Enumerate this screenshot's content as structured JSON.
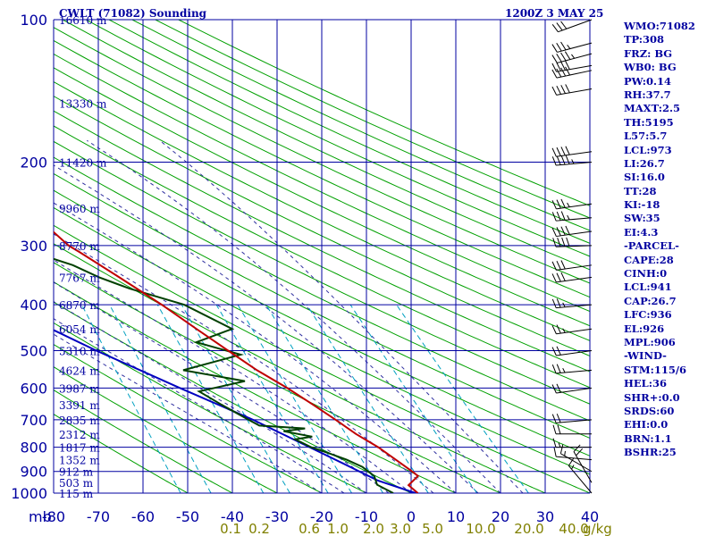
{
  "header": {
    "station": "CWLT (71082) Sounding",
    "valid": "1200Z  3 MAY 25"
  },
  "chart_data": {
    "type": "skew-t",
    "title": "CWLT (71082) Sounding",
    "pressure_ticks": [
      {
        "p": 100,
        "label": "100"
      },
      {
        "p": 200,
        "label": "200"
      },
      {
        "p": 300,
        "label": "300"
      },
      {
        "p": 400,
        "label": "400"
      },
      {
        "p": 500,
        "label": "500"
      },
      {
        "p": 600,
        "label": "600"
      },
      {
        "p": 700,
        "label": "700"
      },
      {
        "p": 800,
        "label": "800"
      },
      {
        "p": 900,
        "label": "900"
      },
      {
        "p": 1000,
        "label": "1000"
      }
    ],
    "pressure_unit_label": "mb",
    "temperature_ticks": [
      -80,
      -70,
      -60,
      -50,
      -40,
      -30,
      -20,
      -10,
      0,
      10,
      20,
      30,
      40
    ],
    "mixing_ratio_labels": [
      "0.1",
      "0.2",
      "0.6",
      "1.0",
      "2.0",
      "3.0",
      "5.0",
      "10.0",
      "20.0",
      "40.0"
    ],
    "mixing_ratio_unit": "g/kg",
    "heights": [
      {
        "p": 100,
        "label": "16610 m"
      },
      {
        "p": 150,
        "label": "13330 m"
      },
      {
        "p": 200,
        "label": "11420 m"
      },
      {
        "p": 250,
        "label": "9960 m"
      },
      {
        "p": 300,
        "label": "8770 m"
      },
      {
        "p": 350,
        "label": "7767 m"
      },
      {
        "p": 400,
        "label": "6870 m"
      },
      {
        "p": 450,
        "label": "6054 m"
      },
      {
        "p": 500,
        "label": "5310 m"
      },
      {
        "p": 550,
        "label": "4624 m"
      },
      {
        "p": 600,
        "label": "3987 m"
      },
      {
        "p": 650,
        "label": "3391 m"
      },
      {
        "p": 700,
        "label": "2835 m"
      },
      {
        "p": 750,
        "label": "2312 m"
      },
      {
        "p": 800,
        "label": "1817 m"
      },
      {
        "p": 850,
        "label": "1352 m"
      },
      {
        "p": 900,
        "label": "912 m"
      },
      {
        "p": 950,
        "label": "503 m"
      },
      {
        "p": 1000,
        "label": "115 m"
      }
    ],
    "temperature_profile": [
      {
        "p": 1000,
        "t": 11.5
      },
      {
        "p": 962,
        "t": 10.0
      },
      {
        "p": 920,
        "t": 12.8
      },
      {
        "p": 900,
        "t": 11.8
      },
      {
        "p": 850,
        "t": 9.0
      },
      {
        "p": 800,
        "t": 6.0
      },
      {
        "p": 750,
        "t": 2.0
      },
      {
        "p": 700,
        "t": -1.5
      },
      {
        "p": 650,
        "t": -5.5
      },
      {
        "p": 600,
        "t": -10.0
      },
      {
        "p": 550,
        "t": -15.5
      },
      {
        "p": 500,
        "t": -20.5
      },
      {
        "p": 450,
        "t": -26.0
      },
      {
        "p": 400,
        "t": -32.0
      },
      {
        "p": 350,
        "t": -39.5
      },
      {
        "p": 310,
        "t": -46.5
      },
      {
        "p": 300,
        "t": -48.5
      },
      {
        "p": 280,
        "t": -51.0
      },
      {
        "p": 250,
        "t": -55.0
      },
      {
        "p": 240,
        "t": -57.0
      },
      {
        "p": 230,
        "t": -58.0
      },
      {
        "p": 220,
        "t": -60.0
      },
      {
        "p": 200,
        "t": -60.5
      },
      {
        "p": 180,
        "t": -61.0
      },
      {
        "p": 160,
        "t": -62.0
      },
      {
        "p": 150,
        "t": -63.5
      },
      {
        "p": 140,
        "t": -64.0
      },
      {
        "p": 125,
        "t": -67.0
      },
      {
        "p": 110,
        "t": -70.0
      },
      {
        "p": 100,
        "t": -71.5
      }
    ],
    "dewpoint_profile": [
      {
        "p": 1000,
        "td": 6.0
      },
      {
        "p": 960,
        "td": 3.0
      },
      {
        "p": 920,
        "td": 3.0
      },
      {
        "p": 880,
        "td": 1.0
      },
      {
        "p": 850,
        "td": -2.0
      },
      {
        "p": 820,
        "td": -6.0
      },
      {
        "p": 800,
        "td": -9.0
      },
      {
        "p": 770,
        "td": -12.0
      },
      {
        "p": 760,
        "td": -8.0
      },
      {
        "p": 740,
        "td": -14.0
      },
      {
        "p": 730,
        "td": -9.0
      },
      {
        "p": 720,
        "td": -19.0
      },
      {
        "p": 700,
        "td": -21.0
      },
      {
        "p": 650,
        "td": -26.0
      },
      {
        "p": 610,
        "td": -30.0
      },
      {
        "p": 580,
        "td": -19.0
      },
      {
        "p": 550,
        "td": -32.0
      },
      {
        "p": 510,
        "td": -18.0
      },
      {
        "p": 480,
        "td": -27.0
      },
      {
        "p": 450,
        "td": -18.0
      },
      {
        "p": 400,
        "td": -27.0
      },
      {
        "p": 370,
        "td": -38.0
      },
      {
        "p": 350,
        "td": -44.0
      },
      {
        "p": 330,
        "td": -49.0
      },
      {
        "p": 300,
        "td": -61.0
      },
      {
        "p": 280,
        "td": -68.0
      },
      {
        "p": 250,
        "td": -74.0
      },
      {
        "p": 230,
        "td": -84.0
      }
    ],
    "parcel_profile": [
      {
        "p": 1000,
        "t": 11.0
      },
      {
        "p": 941,
        "t": 3.5
      },
      {
        "p": 850,
        "t": -4.5
      },
      {
        "p": 700,
        "t": -20.0
      },
      {
        "p": 600,
        "t": -34.0
      },
      {
        "p": 500,
        "t": -50.0
      },
      {
        "p": 400,
        "t": -68.0
      },
      {
        "p": 330,
        "t": -82.0
      }
    ],
    "wind_barbs": [
      {
        "p": 100,
        "dir": 250,
        "spd": 30
      },
      {
        "p": 112,
        "dir": 255,
        "spd": 35
      },
      {
        "p": 118,
        "dir": 255,
        "spd": 45
      },
      {
        "p": 125,
        "dir": 260,
        "spd": 40
      },
      {
        "p": 128,
        "dir": 258,
        "spd": 40
      },
      {
        "p": 140,
        "dir": 260,
        "spd": 40
      },
      {
        "p": 190,
        "dir": 262,
        "spd": 40
      },
      {
        "p": 200,
        "dir": 265,
        "spd": 45
      },
      {
        "p": 245,
        "dir": 262,
        "spd": 35
      },
      {
        "p": 262,
        "dir": 265,
        "spd": 35
      },
      {
        "p": 280,
        "dir": 262,
        "spd": 40
      },
      {
        "p": 300,
        "dir": 268,
        "spd": 40
      },
      {
        "p": 330,
        "dir": 262,
        "spd": 30
      },
      {
        "p": 350,
        "dir": 262,
        "spd": 30
      },
      {
        "p": 400,
        "dir": 265,
        "spd": 25
      },
      {
        "p": 450,
        "dir": 262,
        "spd": 25
      },
      {
        "p": 500,
        "dir": 262,
        "spd": 20
      },
      {
        "p": 550,
        "dir": 265,
        "spd": 25
      },
      {
        "p": 600,
        "dir": 262,
        "spd": 20
      },
      {
        "p": 700,
        "dir": 265,
        "spd": 20
      },
      {
        "p": 750,
        "dir": 270,
        "spd": 20
      },
      {
        "p": 800,
        "dir": 270,
        "spd": 15
      },
      {
        "p": 850,
        "dir": 275,
        "spd": 10
      },
      {
        "p": 900,
        "dir": 300,
        "spd": 15
      },
      {
        "p": 950,
        "dir": 330,
        "spd": 20
      },
      {
        "p": 1000,
        "dir": 320,
        "spd": 15
      }
    ],
    "colors": {
      "background": "#ffffff",
      "isobar": "#0000a0",
      "isotherm": "#0000a0",
      "dry_adiabat": "#00a000",
      "moist_adiabat": "#3030a0",
      "mixing_ratio": "#00a0c0",
      "temperature": "#c00000",
      "dewpoint": "#004000",
      "parcel": "#0000c0",
      "barb": "#000000",
      "axis_text": "#0000a0",
      "mixing_ratio_text": "#808000"
    }
  },
  "indices": [
    "WMO:71082",
    "TP:308",
    "FRZ: BG",
    "WB0: BG",
    "PW:0.14",
    "RH:37.7",
    "MAXT:2.5",
    "TH:5195",
    "L57:5.7",
    "LCL:973",
    "LI:26.7",
    "SI:16.0",
    "TT:28",
    "KI:-18",
    "SW:35",
    "EI:4.3",
    "-PARCEL-",
    "CAPE:28",
    "CINH:0",
    "LCL:941",
    "CAP:26.7",
    "LFC:936",
    "EL:926",
    "MPL:906",
    "-WIND-",
    "STM:115/6",
    "HEL:36",
    "SHR+:0.0",
    "SRDS:60",
    "EHI:0.0",
    "BRN:1.1",
    "BSHR:25"
  ]
}
